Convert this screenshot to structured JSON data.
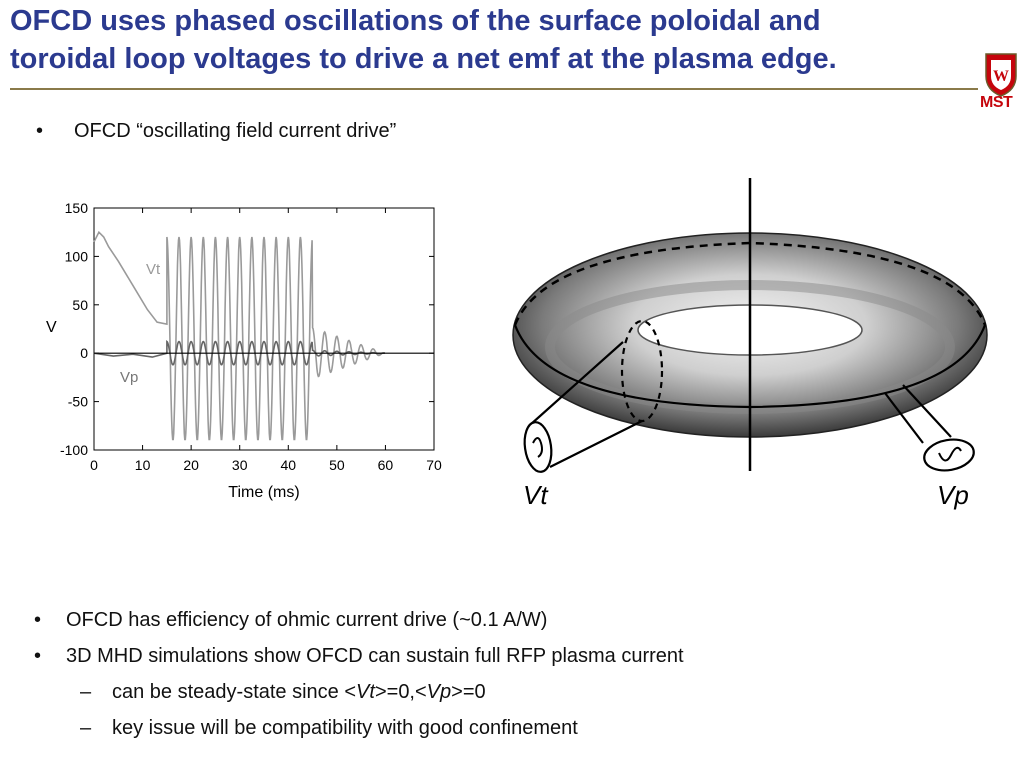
{
  "title": {
    "line1": "OFCD uses phased oscillations of the surface poloidal and",
    "line2": "toroidal loop voltages to drive a net emf at the plasma edge."
  },
  "logo": {
    "text": "MST",
    "icon": "uw-crest-icon"
  },
  "top_bullet": "OFCD “oscillating field current drive”",
  "bullets": [
    {
      "text": "OFCD has efficiency of ohmic current drive (~0.1 A/W)"
    },
    {
      "text": "3D MHD simulations show OFCD can sustain full RFP plasma current"
    }
  ],
  "sub_bullets": {
    "steady_prefix": "can be steady-state since <",
    "vt": "Vt",
    "mid": ">=0,<",
    "vp": "Vp",
    "suffix": ">=0",
    "confinement": "key issue will be compatibility with good confinement"
  },
  "chart_data": {
    "type": "line",
    "ylabel": "V",
    "xlabel": "Time (ms)",
    "xlim": [
      0,
      70
    ],
    "ylim": [
      -100,
      150
    ],
    "xticks": [
      0,
      10,
      20,
      30,
      40,
      50,
      60,
      70
    ],
    "yticks": [
      150,
      100,
      50,
      0,
      -50,
      -100
    ],
    "series": [
      {
        "name": "Vt",
        "x": [
          0,
          1,
          2,
          3,
          5,
          8,
          11,
          13,
          15
        ],
        "y": [
          115,
          125,
          120,
          110,
          95,
          70,
          45,
          32,
          30
        ],
        "oscillation": {
          "start": 15,
          "end": 45,
          "period": 2.5,
          "amplitude": 105,
          "offset": 15,
          "tail_end": 60
        }
      },
      {
        "name": "Vp",
        "x": [
          0,
          4,
          8,
          12,
          15
        ],
        "y": [
          0,
          -3,
          -1,
          -4,
          0
        ],
        "oscillation": {
          "start": 15,
          "end": 45,
          "period": 2.5,
          "amplitude": 12,
          "offset": 0,
          "tail_end": 60
        }
      }
    ]
  },
  "torus_labels": {
    "left": "Vt",
    "right": "Vp"
  },
  "colors": {
    "title": "#2b3a8f",
    "rule": "#8a7a4a",
    "logo": "#c5050c",
    "trace": "#9a9a9a"
  }
}
